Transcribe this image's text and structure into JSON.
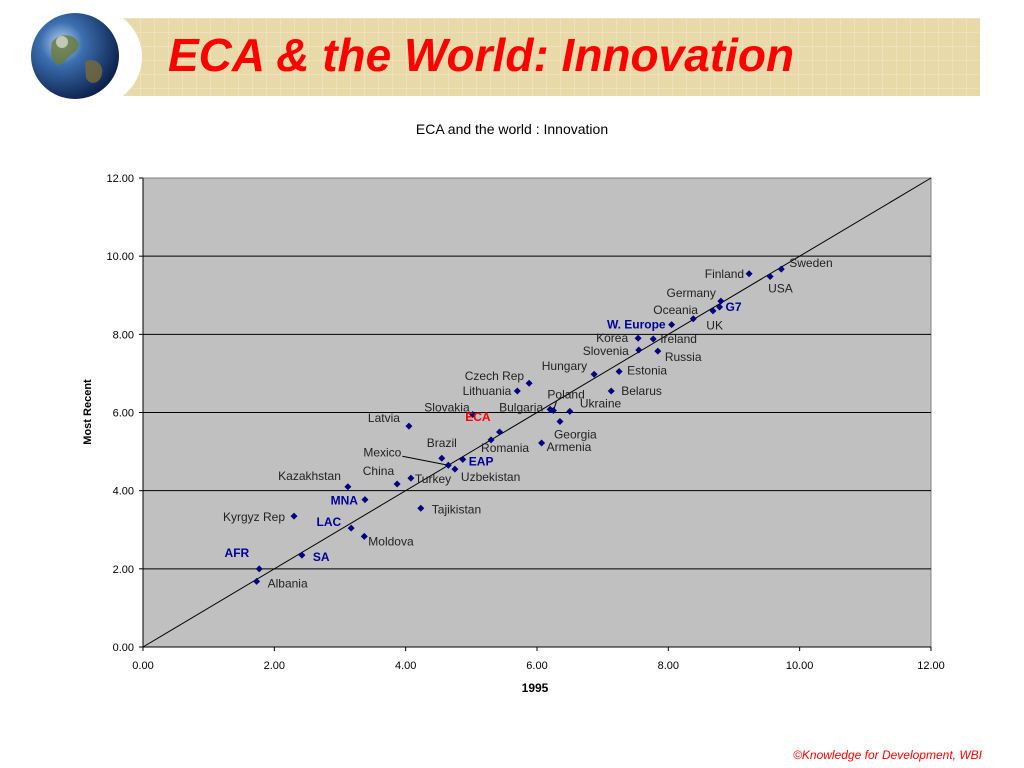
{
  "slide": {
    "title": "ECA & the World: Innovation",
    "footer": "©Knowledge for Development, WBI",
    "title_color": "#ff0000",
    "band_color": "#e8d9a8"
  },
  "chart_data": {
    "type": "scatter",
    "title": "ECA and the world : Innovation",
    "xlabel": "1995",
    "ylabel": "Most Recent",
    "xlim": [
      0,
      12
    ],
    "ylim": [
      0,
      12
    ],
    "x_ticks": [
      "0.00",
      "2.00",
      "4.00",
      "6.00",
      "8.00",
      "10.00",
      "12.00"
    ],
    "y_ticks": [
      "0.00",
      "2.00",
      "4.00",
      "6.00",
      "8.00",
      "10.00",
      "12.00"
    ],
    "grid": "horizontal",
    "reference_line": "y = x",
    "plot_bg": "#c0c0c0",
    "marker_color": "#000080",
    "points": [
      {
        "label": "Sweden",
        "x": 9.72,
        "y": 9.67
      },
      {
        "label": "Finland",
        "x": 9.23,
        "y": 9.55
      },
      {
        "label": "USA",
        "x": 9.55,
        "y": 9.48
      },
      {
        "label": "Germany",
        "x": 8.8,
        "y": 8.85
      },
      {
        "label": "G7",
        "x": 8.78,
        "y": 8.7,
        "group": true
      },
      {
        "label": "Oceania",
        "x": 8.68,
        "y": 8.6
      },
      {
        "label": "UK",
        "x": 8.38,
        "y": 8.4
      },
      {
        "label": "W. Europe",
        "x": 8.05,
        "y": 8.25,
        "group": true
      },
      {
        "label": "Korea",
        "x": 7.54,
        "y": 7.9
      },
      {
        "label": "Ireland",
        "x": 7.77,
        "y": 7.88
      },
      {
        "label": "Slovenia",
        "x": 7.55,
        "y": 7.6
      },
      {
        "label": "Russia",
        "x": 7.84,
        "y": 7.57
      },
      {
        "label": "Estonia",
        "x": 7.25,
        "y": 7.05
      },
      {
        "label": "Hungary",
        "x": 6.87,
        "y": 6.98
      },
      {
        "label": "Czech Rep",
        "x": 5.88,
        "y": 6.75
      },
      {
        "label": "Lithuania",
        "x": 5.7,
        "y": 6.55
      },
      {
        "label": "Belarus",
        "x": 7.13,
        "y": 6.55
      },
      {
        "label": "Poland",
        "x": 6.25,
        "y": 6.05
      },
      {
        "label": "Ukraine",
        "x": 6.5,
        "y": 6.03
      },
      {
        "label": "Bulgaria",
        "x": 6.2,
        "y": 6.08
      },
      {
        "label": "Slovakia",
        "x": 5.02,
        "y": 5.95
      },
      {
        "label": "Latvia",
        "x": 4.05,
        "y": 5.65
      },
      {
        "label": "Georgia",
        "x": 6.35,
        "y": 5.77
      },
      {
        "label": "ECA",
        "x": 5.43,
        "y": 5.5,
        "group": true,
        "highlight": true
      },
      {
        "label": "Romania",
        "x": 5.3,
        "y": 5.3
      },
      {
        "label": "Armenia",
        "x": 6.07,
        "y": 5.22
      },
      {
        "label": "Brazil",
        "x": 4.55,
        "y": 4.83
      },
      {
        "label": "EAP",
        "x": 4.87,
        "y": 4.8,
        "group": true
      },
      {
        "label": "Mexico",
        "x": 4.65,
        "y": 4.65
      },
      {
        "label": "Uzbekistan",
        "x": 4.75,
        "y": 4.55
      },
      {
        "label": "Turkey",
        "x": 4.08,
        "y": 4.32
      },
      {
        "label": "China",
        "x": 3.87,
        "y": 4.17
      },
      {
        "label": "Kazakhstan",
        "x": 3.12,
        "y": 4.1
      },
      {
        "label": "MNA",
        "x": 3.38,
        "y": 3.77,
        "group": true
      },
      {
        "label": "Tajikistan",
        "x": 4.23,
        "y": 3.55
      },
      {
        "label": "Kyrgyz Rep",
        "x": 2.3,
        "y": 3.35
      },
      {
        "label": "LAC",
        "x": 3.17,
        "y": 3.04,
        "group": true
      },
      {
        "label": "Moldova",
        "x": 3.37,
        "y": 2.83
      },
      {
        "label": "SA",
        "x": 2.42,
        "y": 2.35,
        "group": true
      },
      {
        "label": "AFR",
        "x": 1.77,
        "y": 2.0,
        "group": true
      },
      {
        "label": "Albania",
        "x": 1.73,
        "y": 1.68
      }
    ]
  }
}
